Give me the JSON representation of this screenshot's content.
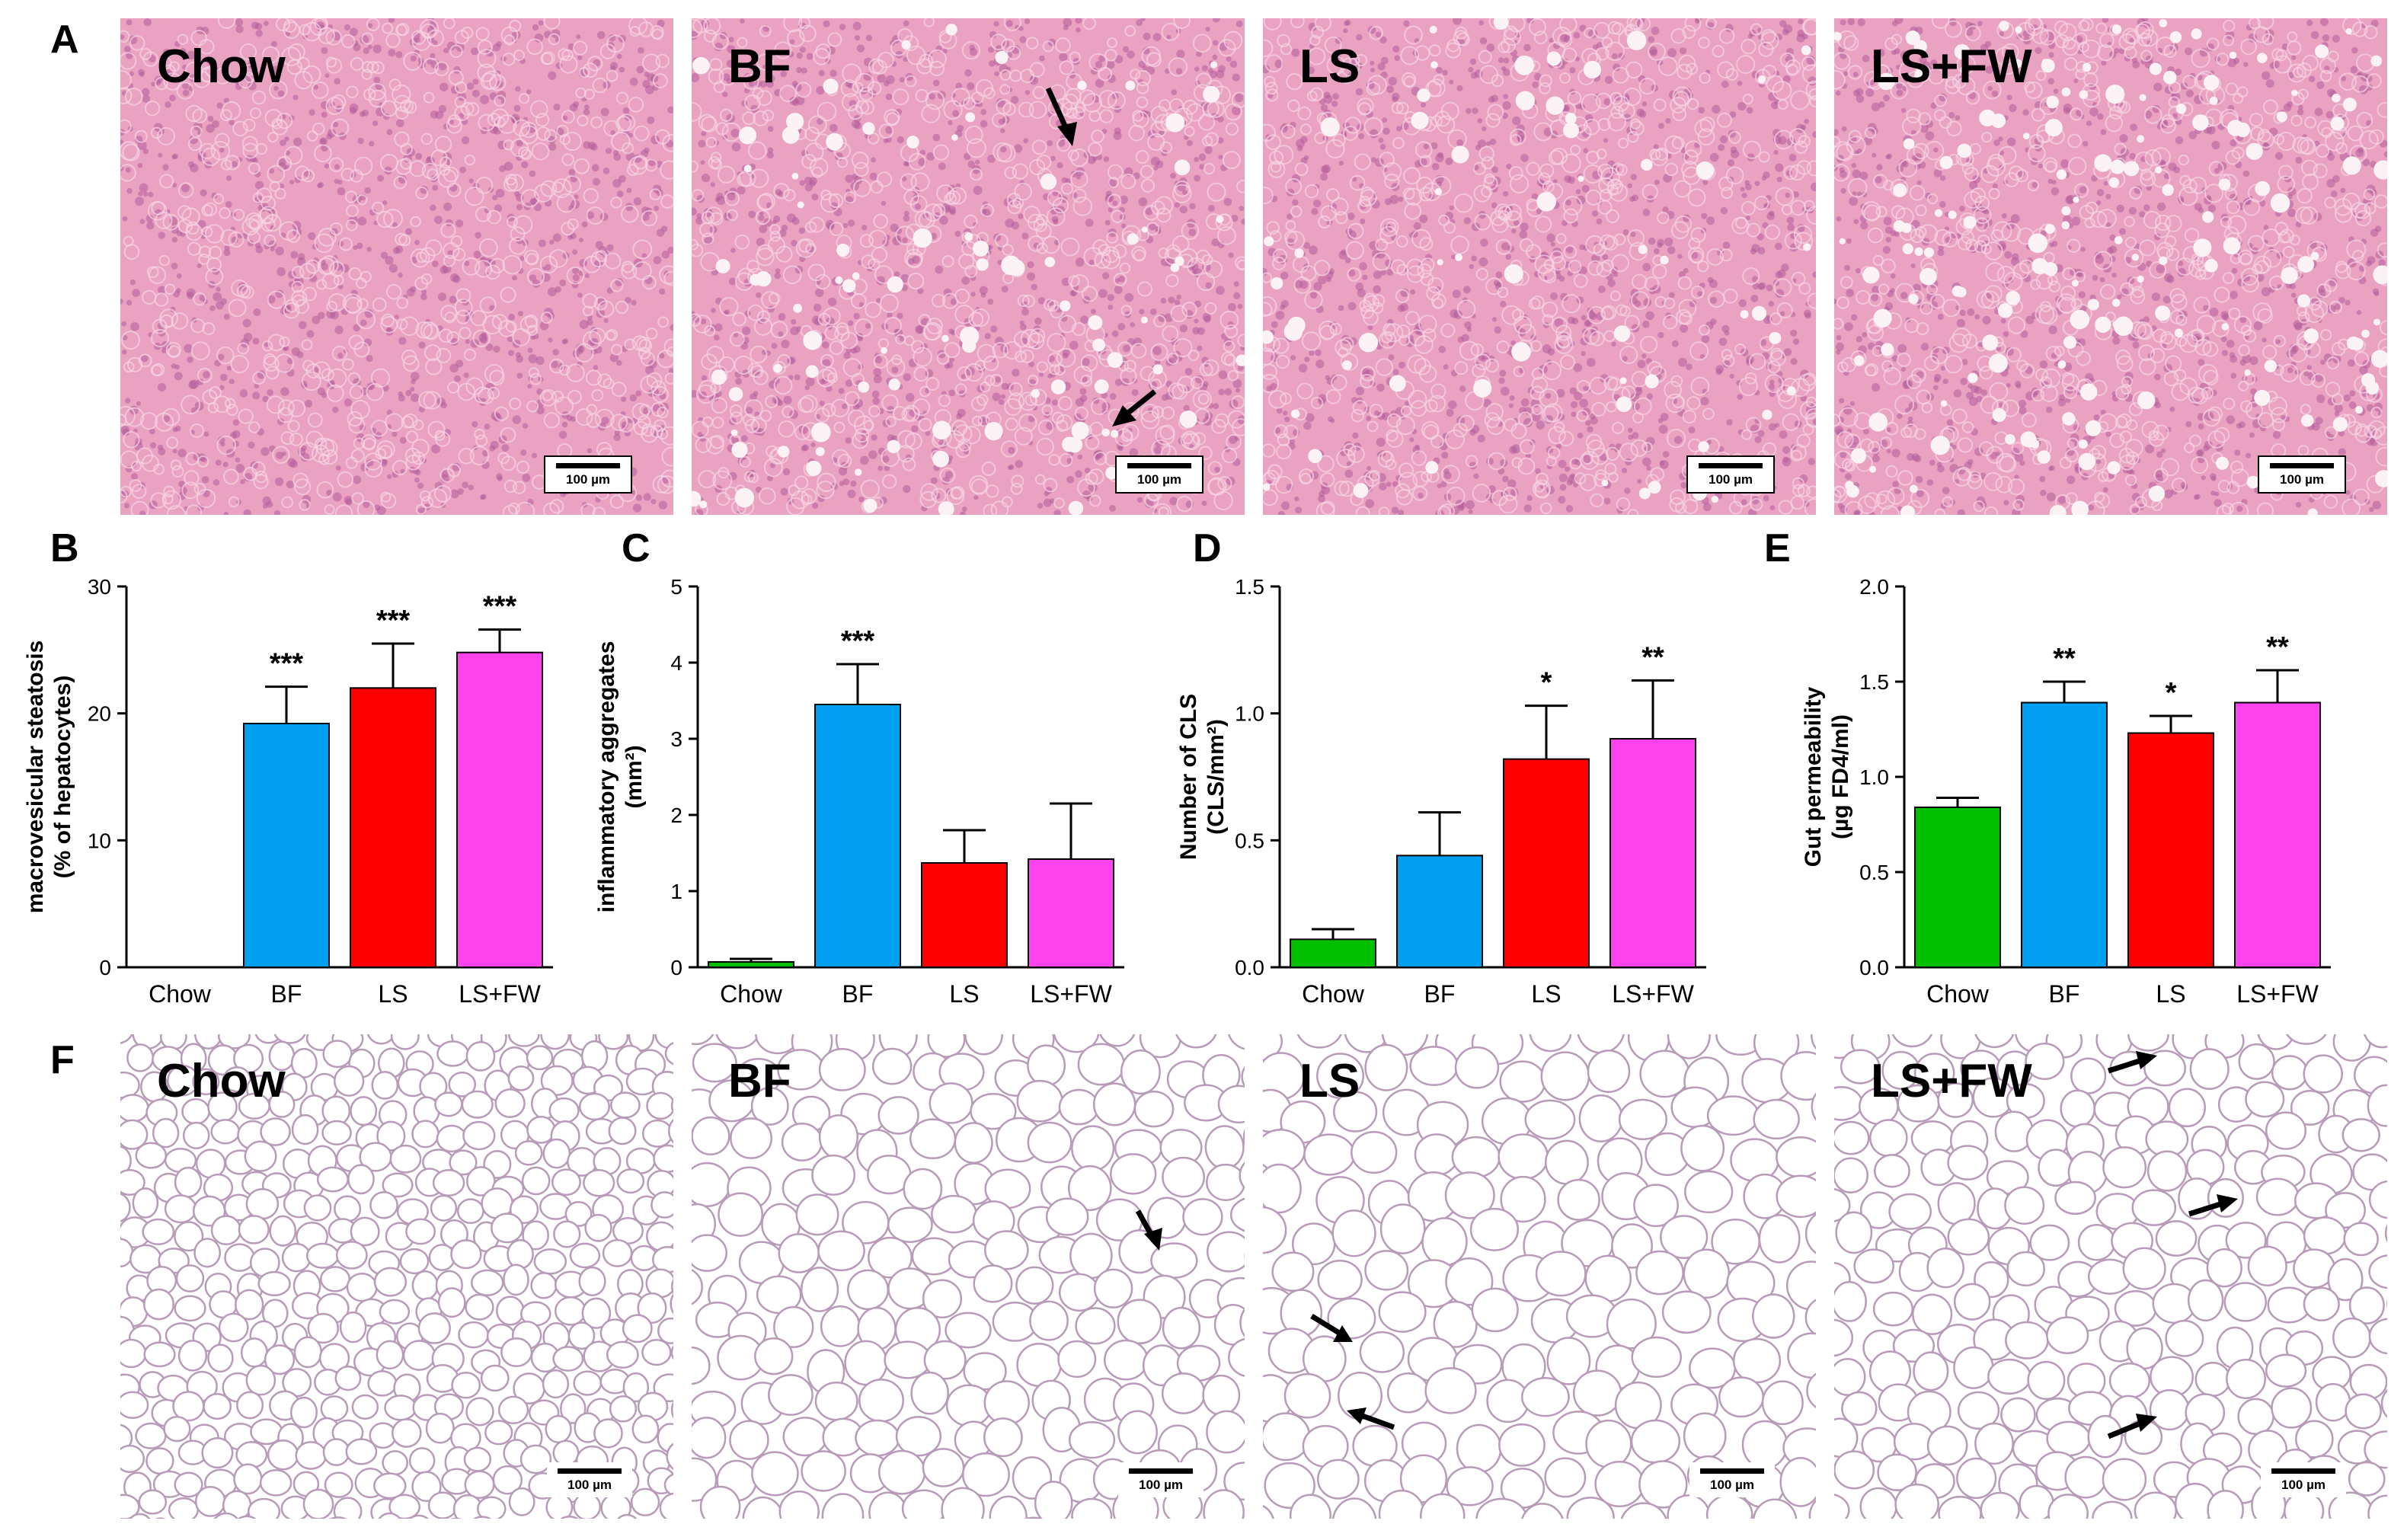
{
  "panels": {
    "A": {
      "letter": "A",
      "images": [
        {
          "label": "Chow",
          "scale": "100 µm"
        },
        {
          "label": "BF",
          "scale": "100 µm"
        },
        {
          "label": "LS",
          "scale": "100 µm"
        },
        {
          "label": "LS+FW",
          "scale": "100 µm"
        }
      ]
    },
    "F": {
      "letter": "F",
      "images": [
        {
          "label": "Chow",
          "scale": "100 µm"
        },
        {
          "label": "BF",
          "scale": "100 µm"
        },
        {
          "label": "LS",
          "scale": "100 µm"
        },
        {
          "label": "LS+FW",
          "scale": "100 µm"
        }
      ]
    }
  },
  "colors": {
    "Chow": "#00c000",
    "BF": "#00a0f0",
    "LS": "#ff0000",
    "LS+FW": "#ff44ee"
  },
  "chart_data": [
    {
      "panel": "B",
      "type": "bar",
      "categories": [
        "Chow",
        "BF",
        "LS",
        "LS+FW"
      ],
      "values": [
        0,
        19.2,
        22.0,
        24.8
      ],
      "errors": [
        0,
        2.9,
        3.5,
        1.8
      ],
      "significance": [
        "",
        "***",
        "***",
        "***"
      ],
      "ylabel": [
        "macrovesicular steatosis",
        "(% of hepatocytes)"
      ],
      "ylim": [
        0,
        30
      ],
      "yticks": [
        "0",
        "10",
        "20",
        "30"
      ],
      "ytick_values": [
        0,
        10,
        20,
        30
      ]
    },
    {
      "panel": "C",
      "type": "bar",
      "categories": [
        "Chow",
        "BF",
        "LS",
        "LS+FW"
      ],
      "values": [
        0.07,
        3.45,
        1.37,
        1.42
      ],
      "errors": [
        0.04,
        0.53,
        0.43,
        0.73
      ],
      "significance": [
        "",
        "***",
        "",
        ""
      ],
      "ylabel": [
        "inflammatory aggregates",
        "(mm²)"
      ],
      "ylim": [
        0,
        5
      ],
      "yticks": [
        "0",
        "1",
        "2",
        "3",
        "4",
        "5"
      ],
      "ytick_values": [
        0,
        1,
        2,
        3,
        4,
        5
      ]
    },
    {
      "panel": "D",
      "type": "bar",
      "categories": [
        "Chow",
        "BF",
        "LS",
        "LS+FW"
      ],
      "values": [
        0.11,
        0.44,
        0.82,
        0.9
      ],
      "errors": [
        0.04,
        0.17,
        0.21,
        0.23
      ],
      "significance": [
        "",
        "",
        "*",
        "**"
      ],
      "ylabel": [
        "Number of CLS",
        "(CLS/mm²)"
      ],
      "ylim": [
        0,
        1.5
      ],
      "yticks": [
        "0.0",
        "0.5",
        "1.0",
        "1.5"
      ],
      "ytick_values": [
        0,
        0.5,
        1.0,
        1.5
      ]
    },
    {
      "panel": "E",
      "type": "bar",
      "categories": [
        "Chow",
        "BF",
        "LS",
        "LS+FW"
      ],
      "values": [
        0.84,
        1.39,
        1.23,
        1.39
      ],
      "errors": [
        0.05,
        0.11,
        0.09,
        0.17
      ],
      "significance": [
        "",
        "**",
        "*",
        "**"
      ],
      "ylabel": [
        "Gut permeability",
        "(µg FD4/ml)"
      ],
      "ylim": [
        0,
        2.0
      ],
      "yticks": [
        "0.0",
        "0.5",
        "1.0",
        "1.5",
        "2.0"
      ],
      "ytick_values": [
        0,
        0.5,
        1.0,
        1.5,
        2.0
      ]
    }
  ]
}
